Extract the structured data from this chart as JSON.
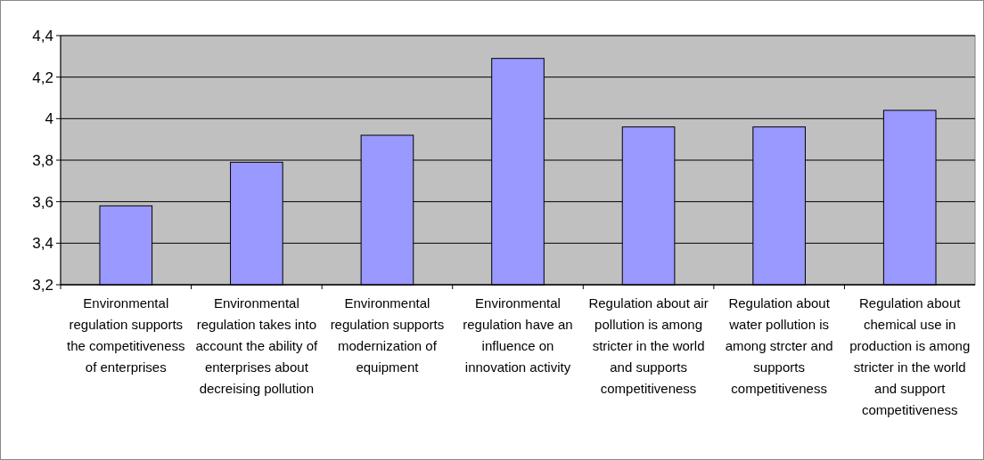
{
  "chart_data": {
    "type": "bar",
    "categories": [
      "Environmental regulation supports the competitiveness of enterprises",
      "Environmental regulation takes into account the ability of enterprises about decreising pollution",
      "Environmental regulation supports modernization of equipment",
      "Environmental regulation have an influence on innovation activity",
      "Regulation about air pollution is among stricter in the world and supports competitiveness",
      "Regulation about water pollution is among strcter and supports competitiveness",
      "Regulation about chemical use in production is among stricter in the world and support competitiveness"
    ],
    "values": [
      3.58,
      3.79,
      3.92,
      4.29,
      3.96,
      3.96,
      4.04
    ],
    "color": "#9999ff",
    "ylim": [
      3.2,
      4.4
    ],
    "yticks": [
      {
        "value": 3.2,
        "label": "3,2"
      },
      {
        "value": 3.4,
        "label": "3,4"
      },
      {
        "value": 3.6,
        "label": "3,6"
      },
      {
        "value": 3.8,
        "label": "3,8"
      },
      4,
      {
        "value": 4.2,
        "label": "4,2"
      },
      {
        "value": 4.4,
        "label": "4,4"
      }
    ],
    "grid": "y"
  }
}
